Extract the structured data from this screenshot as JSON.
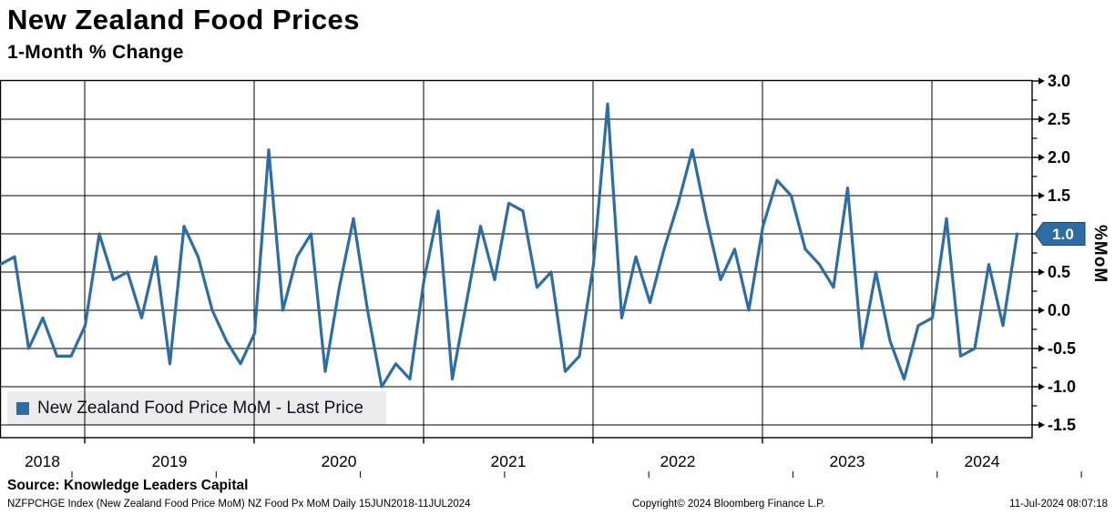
{
  "header": {
    "title": "New Zealand Food Prices",
    "subtitle": "1-Month % Change"
  },
  "legend": {
    "label": "New Zealand Food Price MoM - Last Price"
  },
  "y_axis": {
    "unit_label": "%MoM",
    "tick_labels": [
      "3.0",
      "2.5",
      "2.0",
      "1.5",
      "1.0",
      "0.5",
      "0.0",
      "-0.5",
      "-1.0",
      "-1.5"
    ]
  },
  "x_axis": {
    "year_labels": [
      "2018",
      "2019",
      "2020",
      "2021",
      "2022",
      "2023",
      "2024"
    ]
  },
  "last_price": {
    "label": "1.0",
    "value": 1.0
  },
  "colors": {
    "line": "#2e6da4",
    "flag_fill": "#2e6da4",
    "flag_border": "#18456f",
    "flag_text": "#ffffff",
    "legend_bg": "#ececec",
    "grid": "#000000",
    "text": "#000000"
  },
  "footer": {
    "source": "Source: Knowledge Leaders Capital",
    "security_info": "NZFPCHGE Index (New Zealand Food Price MoM) NZ Food Px MoM  Daily 15JUN2018-11JUL2024",
    "copyright": "Copyright© 2024 Bloomberg Finance L.P.",
    "timestamp": "11-Jul-2024 08:07:18"
  },
  "chart_data": {
    "type": "line",
    "title": "New Zealand Food Prices",
    "subtitle": "1-Month % Change",
    "ylabel": "%MoM",
    "ylim": [
      -1.67,
      3.0
    ],
    "ytick_step": 0.5,
    "grid": "on",
    "legend_position": "bottom-left",
    "x": [
      "Jun-2018",
      "Jul-2018",
      "Aug-2018",
      "Sep-2018",
      "Oct-2018",
      "Nov-2018",
      "Dec-2018",
      "Jan-2019",
      "Feb-2019",
      "Mar-2019",
      "Apr-2019",
      "May-2019",
      "Jun-2019",
      "Jul-2019",
      "Aug-2019",
      "Sep-2019",
      "Oct-2019",
      "Nov-2019",
      "Dec-2019",
      "Jan-2020",
      "Feb-2020",
      "Mar-2020",
      "Apr-2020",
      "May-2020",
      "Jun-2020",
      "Jul-2020",
      "Aug-2020",
      "Sep-2020",
      "Oct-2020",
      "Nov-2020",
      "Dec-2020",
      "Jan-2021",
      "Feb-2021",
      "Mar-2021",
      "Apr-2021",
      "May-2021",
      "Jun-2021",
      "Jul-2021",
      "Aug-2021",
      "Sep-2021",
      "Oct-2021",
      "Nov-2021",
      "Dec-2021",
      "Jan-2022",
      "Feb-2022",
      "Mar-2022",
      "Apr-2022",
      "May-2022",
      "Jun-2022",
      "Jul-2022",
      "Aug-2022",
      "Sep-2022",
      "Oct-2022",
      "Nov-2022",
      "Dec-2022",
      "Jan-2023",
      "Feb-2023",
      "Mar-2023",
      "Apr-2023",
      "May-2023",
      "Jun-2023",
      "Jul-2023",
      "Aug-2023",
      "Sep-2023",
      "Oct-2023",
      "Nov-2023",
      "Dec-2023",
      "Jan-2024",
      "Feb-2024",
      "Mar-2024",
      "Apr-2024",
      "May-2024",
      "Jun-2024"
    ],
    "series": [
      {
        "name": "New Zealand Food Price MoM - Last Price",
        "values": [
          0.6,
          0.7,
          -0.5,
          -0.1,
          -0.6,
          -0.6,
          -0.2,
          1.0,
          0.4,
          0.5,
          -0.1,
          0.7,
          -0.7,
          1.1,
          0.7,
          0.0,
          -0.4,
          -0.7,
          -0.3,
          2.1,
          0.0,
          0.7,
          1.0,
          -0.8,
          0.3,
          1.2,
          0.0,
          -1.0,
          -0.7,
          -0.9,
          0.4,
          1.3,
          -0.9,
          0.1,
          1.1,
          0.4,
          1.4,
          1.3,
          0.3,
          0.5,
          -0.8,
          -0.6,
          0.6,
          2.7,
          -0.1,
          0.7,
          0.1,
          0.8,
          1.4,
          2.1,
          1.2,
          0.4,
          0.8,
          0.0,
          1.1,
          1.7,
          1.5,
          0.8,
          0.6,
          0.3,
          1.6,
          -0.5,
          0.5,
          -0.4,
          -0.9,
          -0.2,
          -0.1,
          1.2,
          -0.6,
          -0.5,
          0.6,
          -0.2,
          1.0
        ]
      }
    ]
  }
}
